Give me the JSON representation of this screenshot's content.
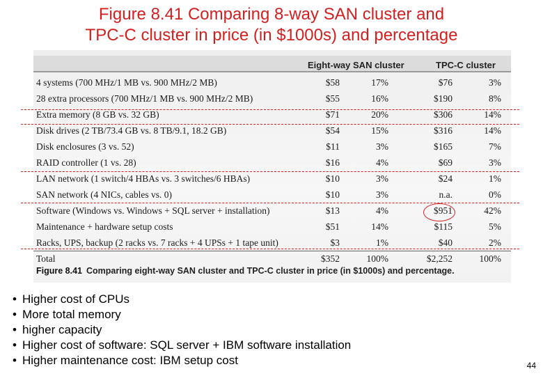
{
  "slide": {
    "title_line1": "Figure 8.41 Comparing 8-way SAN cluster and",
    "title_line2": "TPC-C cluster in price (in $1000s) and percentage",
    "page_number": "44",
    "title_color": "#d21f1f"
  },
  "table": {
    "header_san": "Eight-way SAN cluster",
    "header_tpc": "TPC-C cluster",
    "rows": [
      {
        "label": "4 systems (700 MHz/1 MB vs. 900 MHz/2 MB)",
        "san_cost": "$58",
        "san_pct": "17%",
        "tpc_cost": "$76",
        "tpc_pct": "3%"
      },
      {
        "label": "28 extra processors (700 MHz/1 MB vs. 900 MHz/2 MB)",
        "san_cost": "$55",
        "san_pct": "16%",
        "tpc_cost": "$190",
        "tpc_pct": "8%"
      },
      {
        "label": "Extra memory (8 GB vs. 32 GB)",
        "san_cost": "$71",
        "san_pct": "20%",
        "tpc_cost": "$306",
        "tpc_pct": "14%"
      },
      {
        "label": "Disk drives (2 TB/73.4 GB vs. 8 TB/9.1, 18.2 GB)",
        "san_cost": "$54",
        "san_pct": "15%",
        "tpc_cost": "$316",
        "tpc_pct": "14%"
      },
      {
        "label": "Disk enclosures (3 vs. 52)",
        "san_cost": "$11",
        "san_pct": "3%",
        "tpc_cost": "$165",
        "tpc_pct": "7%"
      },
      {
        "label": "RAID controller (1 vs. 28)",
        "san_cost": "$16",
        "san_pct": "4%",
        "tpc_cost": "$69",
        "tpc_pct": "3%"
      },
      {
        "label": "LAN network (1 switch/4 HBAs vs. 3 switches/6 HBAs)",
        "san_cost": "$10",
        "san_pct": "3%",
        "tpc_cost": "$24",
        "tpc_pct": "1%"
      },
      {
        "label": "SAN network (4 NICs, cables vs. 0)",
        "san_cost": "$10",
        "san_pct": "3%",
        "tpc_cost": "n.a.",
        "tpc_pct": "0%"
      },
      {
        "label": "Software (Windows vs. Windows + SQL server + installation)",
        "san_cost": "$13",
        "san_pct": "4%",
        "tpc_cost": "$951",
        "tpc_pct": "42%"
      },
      {
        "label": "Maintenance + hardware setup costs",
        "san_cost": "$51",
        "san_pct": "14%",
        "tpc_cost": "$115",
        "tpc_pct": "5%"
      },
      {
        "label": "Racks, UPS, backup (2 racks vs. 7 racks + 4 UPSs + 1 tape unit)",
        "san_cost": "$3",
        "san_pct": "1%",
        "tpc_cost": "$40",
        "tpc_pct": "2%"
      },
      {
        "label": "Total",
        "san_cost": "$352",
        "san_pct": "100%",
        "tpc_cost": "$2,252",
        "tpc_pct": "100%"
      }
    ],
    "caption_label": "Figure 8.41",
    "caption_text": "Comparing eight-way SAN cluster and TPC-C cluster in price (in $1000s) and percentage."
  },
  "bullets": [
    "Higher cost of CPUs",
    "More total memory",
    "higher capacity",
    "Higher cost of software: SQL server + IBM software installation",
    "Higher maintenance cost: IBM setup cost"
  ]
}
